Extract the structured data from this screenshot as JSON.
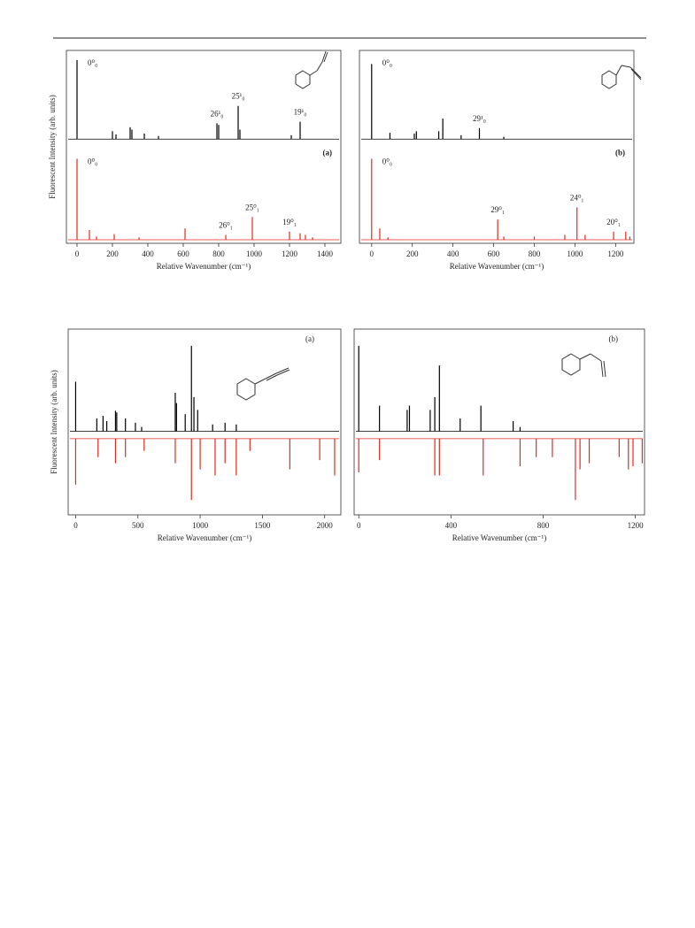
{
  "chart_data": [
    {
      "type": "stick",
      "layout": "stacked",
      "y_label": "Fluorescent Intensity (arb. units)",
      "x_label": "Relative Wavenumber (cm⁻¹)",
      "panel_label": "(a)",
      "xlim": [
        -60,
        1490
      ],
      "xticks": [
        0,
        200,
        400,
        600,
        800,
        1000,
        1200,
        1400
      ],
      "series": [
        {
          "color": "#000000",
          "x": [
            0,
            200,
            220,
            300,
            310,
            380,
            460,
            790,
            800,
            910,
            920,
            1210,
            1260
          ],
          "values": [
            1.0,
            0.1,
            0.06,
            0.15,
            0.12,
            0.07,
            0.04,
            0.2,
            0.18,
            0.42,
            0.12,
            0.05,
            0.22
          ],
          "annotations": [
            {
              "text": "0⁰₀",
              "x": 0
            },
            {
              "text": "26¹₀",
              "x": 790
            },
            {
              "text": "25¹₀",
              "x": 910
            },
            {
              "text": "19¹₀",
              "x": 1260
            }
          ]
        },
        {
          "color": "#e8281e",
          "x": [
            0,
            70,
            110,
            210,
            350,
            610,
            840,
            990,
            1200,
            1260,
            1290,
            1330
          ],
          "values": [
            1.0,
            0.12,
            0.04,
            0.07,
            0.03,
            0.14,
            0.06,
            0.28,
            0.1,
            0.08,
            0.06,
            0.03
          ],
          "annotations": [
            {
              "text": "0⁰₀",
              "x": 0
            },
            {
              "text": "26⁰₁",
              "x": 840
            },
            {
              "text": "25⁰₁",
              "x": 990
            },
            {
              "text": "19⁰₁",
              "x": 1200
            }
          ]
        }
      ]
    },
    {
      "type": "stick",
      "layout": "stacked",
      "x_label": "Relative Wavenumber (cm⁻¹)",
      "panel_label": "(b)",
      "xlim": [
        -60,
        1290
      ],
      "xticks": [
        0,
        200,
        400,
        600,
        800,
        1000,
        1200
      ],
      "series": [
        {
          "color": "#000000",
          "x": [
            0,
            90,
            210,
            220,
            330,
            350,
            440,
            530,
            650
          ],
          "values": [
            0.95,
            0.08,
            0.07,
            0.1,
            0.1,
            0.26,
            0.05,
            0.14,
            0.03
          ],
          "annotations": [
            {
              "text": "0⁰₀",
              "x": 0
            },
            {
              "text": "29¹₀",
              "x": 530
            }
          ]
        },
        {
          "color": "#e8281e",
          "x": [
            0,
            40,
            80,
            620,
            650,
            800,
            950,
            1010,
            1050,
            1190,
            1250,
            1270
          ],
          "values": [
            1.0,
            0.14,
            0.03,
            0.25,
            0.04,
            0.04,
            0.06,
            0.4,
            0.06,
            0.1,
            0.1,
            0.04
          ],
          "annotations": [
            {
              "text": "0⁰₀",
              "x": 0
            },
            {
              "text": "29⁰₁",
              "x": 620
            },
            {
              "text": "24⁰₁",
              "x": 1010
            },
            {
              "text": "20⁰₁",
              "x": 1190
            }
          ]
        }
      ]
    },
    {
      "type": "stick",
      "layout": "mirrored",
      "y_label": "Fluorescent Intensity (arb. units)",
      "x_label": "Relative Wavenumber (cm⁻¹)",
      "panel_label": "(a)",
      "xlim": [
        -60,
        2130
      ],
      "xticks": [
        0,
        500,
        1000,
        1500,
        2000
      ],
      "series": [
        {
          "color": "#000000",
          "x": [
            0,
            170,
            220,
            250,
            320,
            330,
            400,
            480,
            530,
            800,
            810,
            880,
            930,
            950,
            980,
            1100,
            1200,
            1290
          ],
          "values": [
            0.58,
            0.15,
            0.18,
            0.12,
            0.24,
            0.22,
            0.15,
            0.1,
            0.05,
            0.45,
            0.33,
            0.2,
            1.0,
            0.4,
            0.25,
            0.08,
            0.1,
            0.08
          ]
        },
        {
          "color": "#e8281e",
          "x": [
            0,
            180,
            320,
            400,
            550,
            800,
            930,
            1000,
            1120,
            1200,
            1290,
            1400,
            1720,
            1960,
            2080
          ],
          "values": [
            0.75,
            0.3,
            0.4,
            0.3,
            0.2,
            0.4,
            1.0,
            0.5,
            0.6,
            0.4,
            0.6,
            0.2,
            0.5,
            0.35,
            0.6
          ]
        }
      ]
    },
    {
      "type": "stick",
      "layout": "mirrored",
      "x_label": "Relative Wavenumber (cm⁻¹)",
      "panel_label": "(b)",
      "xlim": [
        -20,
        1240
      ],
      "xticks": [
        0,
        400,
        800,
        1200
      ],
      "series": [
        {
          "color": "#000000",
          "x": [
            0,
            90,
            210,
            220,
            310,
            330,
            350,
            440,
            530,
            670,
            700
          ],
          "values": [
            1.0,
            0.3,
            0.25,
            0.3,
            0.25,
            0.4,
            0.77,
            0.15,
            0.3,
            0.12,
            0.05
          ]
        },
        {
          "color": "#e8281e",
          "x": [
            0,
            90,
            330,
            350,
            540,
            700,
            770,
            840,
            940,
            960,
            1000,
            1130,
            1170,
            1190,
            1230
          ],
          "values": [
            0.55,
            0.35,
            0.6,
            0.6,
            0.6,
            0.45,
            0.3,
            0.3,
            1.0,
            0.5,
            0.4,
            0.3,
            0.5,
            0.45,
            0.4
          ]
        }
      ]
    }
  ]
}
